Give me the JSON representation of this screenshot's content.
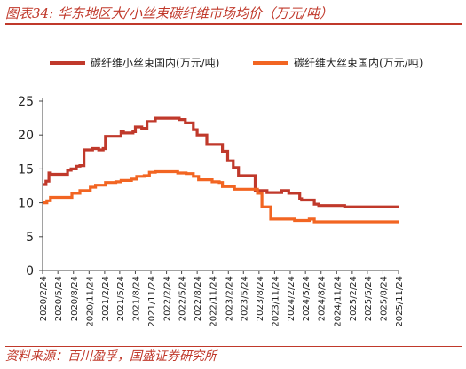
{
  "title": "图表34: 华东地区大/小丝束碳纤维市场均价（万元/吨）",
  "source": "资料来源：百川盈孚，国盛证券研究所",
  "chart_data": {
    "type": "line",
    "title": "图表34: 华东地区大/小丝束碳纤维市场均价（万元/吨）",
    "xlabel": "",
    "ylabel": "",
    "ylim": [
      0,
      25
    ],
    "yticks": [
      0,
      5,
      10,
      15,
      20,
      25
    ],
    "xticks": [
      "2020/2/24",
      "2020/5/24",
      "2020/8/24",
      "2020/11/24",
      "2021/2/24",
      "2021/5/24",
      "2021/8/24",
      "2021/11/24",
      "2022/2/24",
      "2022/5/24",
      "2022/8/24",
      "2022/11/24",
      "2023/2/24",
      "2023/5/24",
      "2023/8/24",
      "2023/11/24",
      "2024/2/24",
      "2024/5/24",
      "2024/8/24",
      "2024/11/24",
      "2025/2/24",
      "2025/5/24",
      "2025/8/24",
      "2025/11/24"
    ],
    "grid": false,
    "legend_position": "top",
    "x_start": "2020/2/24",
    "x_end": "2025/11/24",
    "series": [
      {
        "name": "碳纤维小丝束国内(万元/吨)",
        "color": "#c0392b",
        "x": [
          "2020/2/24",
          "2020/3/15",
          "2020/4/1",
          "2020/4/10",
          "2020/6/1",
          "2020/7/20",
          "2020/8/10",
          "2020/9/10",
          "2020/10/1",
          "2020/10/25",
          "2020/12/15",
          "2021/1/20",
          "2021/2/15",
          "2021/3/1",
          "2021/6/1",
          "2021/6/15",
          "2021/8/10",
          "2021/8/24",
          "2021/10/1",
          "2021/11/1",
          "2021/12/20",
          "2022/1/10",
          "2022/5/10",
          "2022/6/15",
          "2022/8/1",
          "2022/8/24",
          "2022/10/20",
          "2022/12/15",
          "2023/1/20",
          "2023/2/20",
          "2023/3/25",
          "2023/4/25",
          "2023/7/15",
          "2023/8/1",
          "2023/10/10",
          "2023/11/1",
          "2024/1/5",
          "2024/2/15",
          "2024/4/20",
          "2024/5/1",
          "2024/7/15",
          "2024/8/10",
          "2025/1/10",
          "2025/11/24"
        ],
        "values": [
          12.7,
          13.2,
          14.4,
          14.2,
          14.2,
          14.8,
          15.0,
          15.4,
          15.5,
          17.8,
          18.0,
          17.8,
          18.0,
          19.8,
          20.5,
          20.3,
          20.5,
          21.2,
          21.0,
          22.0,
          22.5,
          22.5,
          22.3,
          21.8,
          20.8,
          20.0,
          18.6,
          18.6,
          17.6,
          16.2,
          15.2,
          14.0,
          14.0,
          11.8,
          11.5,
          11.5,
          11.8,
          11.4,
          10.6,
          10.4,
          9.8,
          9.6,
          9.4,
          9.4
        ]
      },
      {
        "name": "碳纤维大丝束国内(万元/吨)",
        "color": "#f26522",
        "x": [
          "2020/2/24",
          "2020/3/20",
          "2020/4/10",
          "2020/7/20",
          "2020/8/15",
          "2020/10/1",
          "2020/12/1",
          "2021/1/1",
          "2021/3/1",
          "2021/5/1",
          "2021/6/1",
          "2021/8/1",
          "2021/9/1",
          "2021/10/15",
          "2021/11/15",
          "2021/12/20",
          "2022/4/15",
          "2022/5/1",
          "2022/6/20",
          "2022/8/1",
          "2022/9/1",
          "2022/11/20",
          "2023/1/1",
          "2023/1/20",
          "2023/4/1",
          "2023/8/15",
          "2023/9/10",
          "2023/11/1",
          "2024/3/20",
          "2024/5/1",
          "2024/6/15",
          "2024/7/15",
          "2025/11/24"
        ],
        "values": [
          10.0,
          10.3,
          10.8,
          10.8,
          11.4,
          11.8,
          12.3,
          12.6,
          13.0,
          13.1,
          13.3,
          13.5,
          13.9,
          14.0,
          14.5,
          14.6,
          14.6,
          14.4,
          14.3,
          13.9,
          13.4,
          13.1,
          13.0,
          12.4,
          12.0,
          11.4,
          9.4,
          7.6,
          7.4,
          7.4,
          7.6,
          7.2,
          7.2
        ]
      }
    ]
  }
}
